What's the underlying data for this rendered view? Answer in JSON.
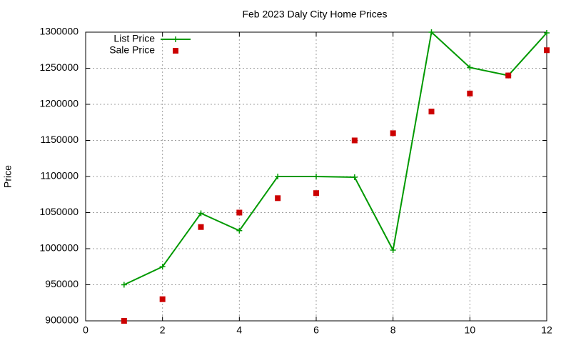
{
  "chart_data": {
    "type": "line",
    "title": "Feb 2023 Daly City Home Prices",
    "y_label": "Price",
    "x": [
      1,
      2,
      3,
      4,
      5,
      6,
      7,
      8,
      9,
      10,
      11,
      12
    ],
    "series": [
      {
        "name": "List Price",
        "color": "#009900",
        "style": "linespoints",
        "values": [
          950000,
          975000,
          1049000,
          1025000,
          1100000,
          1100000,
          1099000,
          998000,
          1300000,
          1251000,
          1240000,
          1299000
        ]
      },
      {
        "name": "Sale Price",
        "color": "#cc0000",
        "style": "points",
        "values": [
          900000,
          930000,
          1030000,
          1050000,
          1070000,
          1077000,
          1150000,
          1160000,
          1190000,
          1215000,
          1240000,
          1275000
        ]
      }
    ],
    "xlim": [
      0,
      12
    ],
    "xticks": [
      0,
      2,
      4,
      6,
      8,
      10,
      12
    ],
    "ylim": [
      900000,
      1300000
    ],
    "yticks": [
      900000,
      950000,
      1000000,
      1050000,
      1100000,
      1150000,
      1200000,
      1250000,
      1300000
    ],
    "grid": true,
    "legend": "top-left"
  }
}
